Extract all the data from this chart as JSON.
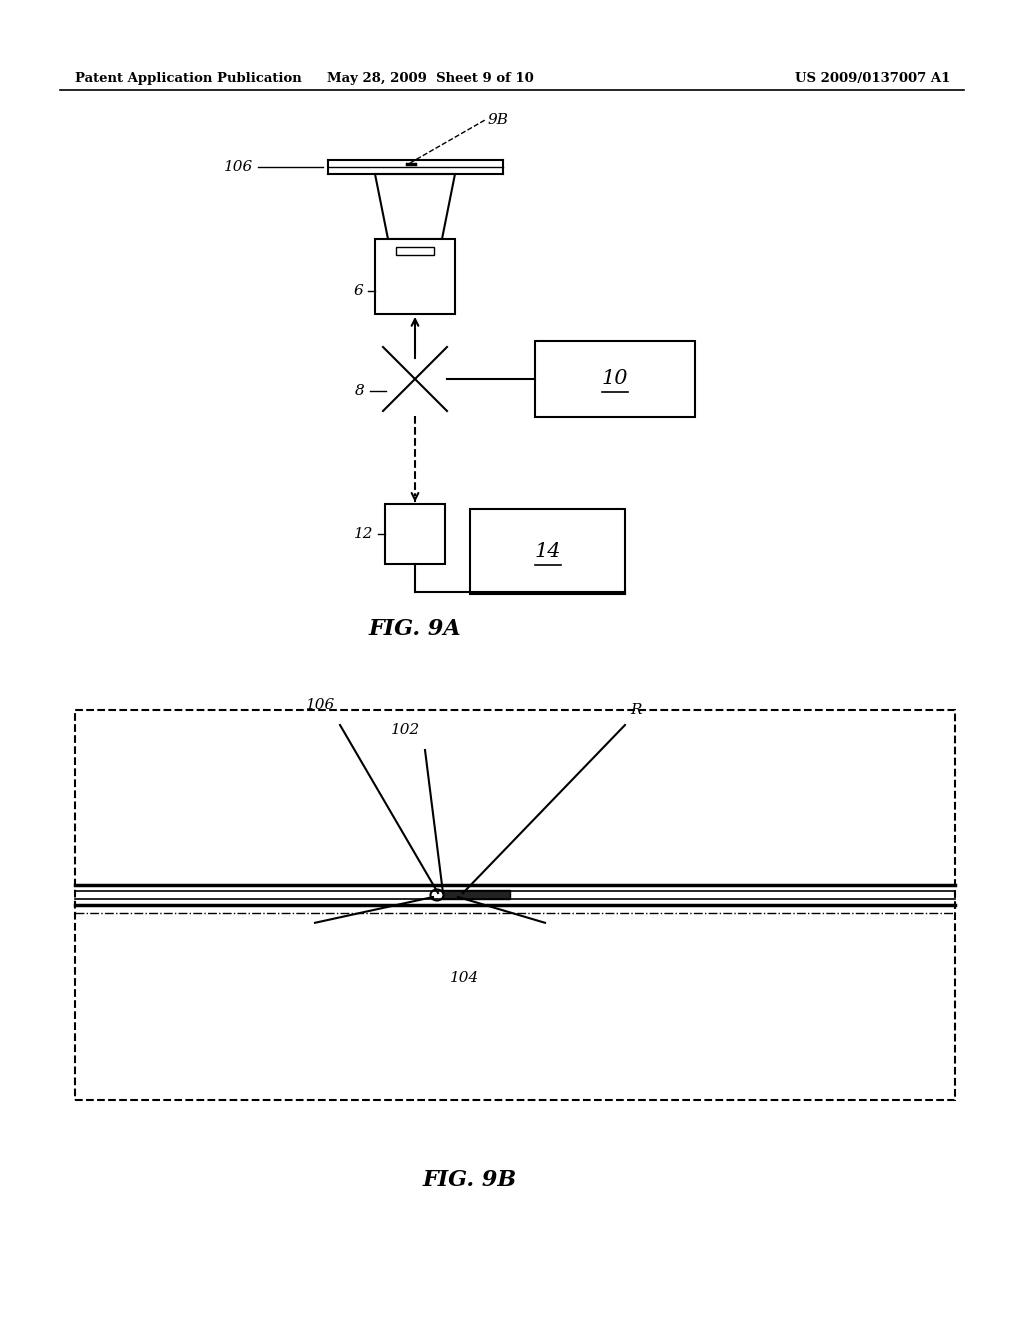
{
  "bg_color": "#ffffff",
  "line_color": "#000000",
  "header_left": "Patent Application Publication",
  "header_mid": "May 28, 2009  Sheet 9 of 10",
  "header_right": "US 2009/0137007 A1",
  "fig9a_label": "FIG. 9A",
  "fig9b_label": "FIG. 9B",
  "label_106_9a": "106",
  "label_9b": "9B",
  "label_6": "6",
  "label_8": "8",
  "label_10": "10",
  "label_12": "12",
  "label_14": "14",
  "label_106_9b": "106",
  "label_102": "102",
  "label_R": "R",
  "label_104": "104"
}
